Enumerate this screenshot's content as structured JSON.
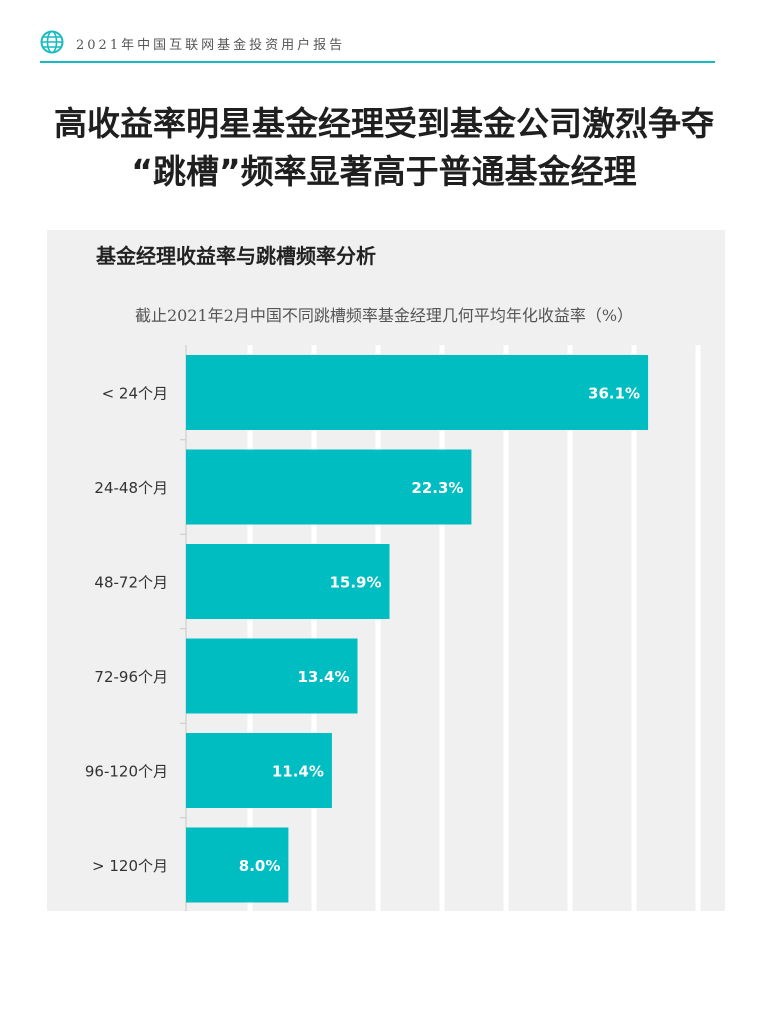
{
  "header": {
    "report_title": "2021年中国互联网基金投资用户报告"
  },
  "headline": {
    "line1": "高收益率明星基金经理受到基金公司激烈争夺",
    "line2": "“跳槽”频率显著高于普通基金经理"
  },
  "chart_data": {
    "type": "bar",
    "orientation": "horizontal",
    "title": "基金经理收益率与跳槽频率分析",
    "subtitle": "截止2021年2月中国不同跳槽频率基金经理几何平均年化收益率（%）",
    "categories": [
      "< 24个月",
      "24-48个月",
      "48-72个月",
      "72-96个月",
      "96-120个月",
      "> 120个月"
    ],
    "values": [
      36.1,
      22.3,
      15.9,
      13.4,
      11.4,
      8.0
    ],
    "data_labels": [
      "36.1%",
      "22.3%",
      "15.9%",
      "13.4%",
      "11.4%",
      "8.0%"
    ],
    "xlim": [
      0,
      40
    ],
    "grid": true,
    "bar_color": "#00bdc2",
    "label_color": "#ffffff"
  }
}
